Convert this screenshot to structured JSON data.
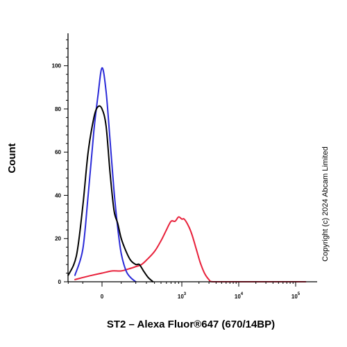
{
  "chart_data": {
    "type": "line",
    "xlabel": "ST2 – Alexa Fluor®647 (670/14BP)",
    "ylabel": "Count",
    "ylim": [
      0,
      115
    ],
    "y_ticks": [
      "0",
      "20",
      "40",
      "60",
      "80",
      "100"
    ],
    "y_tick_values": [
      0,
      20,
      40,
      60,
      80,
      100
    ],
    "x_scale": "biexponential",
    "x_ticks": [
      {
        "value": 0,
        "label": "0"
      },
      {
        "value": 1000,
        "label": "10",
        "exp": "3"
      },
      {
        "value": 10000,
        "label": "10",
        "exp": "4"
      },
      {
        "value": 100000,
        "label": "10",
        "exp": "5"
      }
    ],
    "legend": "none",
    "series": [
      {
        "color": "#e8203a",
        "points": [
          [
            -300,
            0
          ],
          [
            -150,
            1
          ],
          [
            -50,
            3
          ],
          [
            0,
            4
          ],
          [
            50,
            5
          ],
          [
            100,
            5
          ],
          [
            150,
            6
          ],
          [
            200,
            7
          ],
          [
            250,
            8
          ],
          [
            300,
            10
          ],
          [
            400,
            14
          ],
          [
            500,
            19
          ],
          [
            600,
            24
          ],
          [
            700,
            28
          ],
          [
            800,
            28
          ],
          [
            900,
            30
          ],
          [
            1000,
            29
          ],
          [
            1100,
            29
          ],
          [
            1300,
            26
          ],
          [
            1500,
            22
          ],
          [
            1800,
            15
          ],
          [
            2100,
            9
          ],
          [
            2500,
            4
          ],
          [
            3000,
            1
          ],
          [
            3500,
            0
          ],
          [
            8000,
            0
          ],
          [
            80000,
            0
          ],
          [
            150000,
            0
          ]
        ]
      },
      {
        "color": "#2a2ad8",
        "points": [
          [
            -250,
            0
          ],
          [
            -150,
            3
          ],
          [
            -100,
            15
          ],
          [
            -70,
            40
          ],
          [
            -40,
            70
          ],
          [
            -20,
            86
          ],
          [
            0,
            99
          ],
          [
            20,
            88
          ],
          [
            40,
            65
          ],
          [
            60,
            42
          ],
          [
            80,
            25
          ],
          [
            100,
            13
          ],
          [
            130,
            5
          ],
          [
            160,
            2
          ],
          [
            200,
            0
          ]
        ]
      },
      {
        "color": "#000000",
        "points": [
          [
            -280,
            0
          ],
          [
            -200,
            3
          ],
          [
            -140,
            12
          ],
          [
            -100,
            35
          ],
          [
            -70,
            60
          ],
          [
            -40,
            76
          ],
          [
            -20,
            81
          ],
          [
            0,
            80
          ],
          [
            20,
            72
          ],
          [
            40,
            50
          ],
          [
            60,
            33
          ],
          [
            80,
            27
          ],
          [
            100,
            20
          ],
          [
            130,
            14
          ],
          [
            160,
            10
          ],
          [
            200,
            8
          ],
          [
            230,
            8
          ],
          [
            270,
            5
          ],
          [
            320,
            2
          ],
          [
            380,
            0
          ]
        ]
      }
    ]
  },
  "copyright": "Copyright (c) 2024 Abcam Limited"
}
